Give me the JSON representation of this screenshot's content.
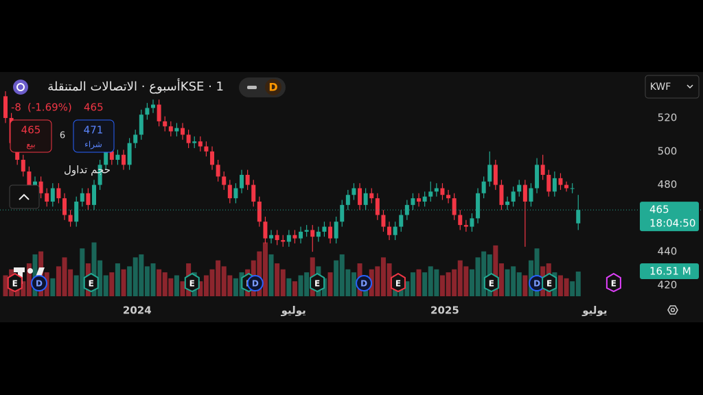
{
  "header": {
    "title": "KSE · 1أسبوع · الاتصالات المتنقلة",
    "toggle_label": "D",
    "currency": "KWF"
  },
  "quote": {
    "change": "-8",
    "change_pct": "(-1.69%)",
    "price": "465",
    "sell": {
      "price": "465",
      "label": "بيع"
    },
    "spread": "6",
    "buy": {
      "price": "471",
      "label": "شراء"
    },
    "countdown": "18:04:50"
  },
  "chart_data": {
    "type": "candlestick",
    "categories": [
      null,
      null,
      null,
      null,
      null,
      null,
      null,
      null,
      null,
      null,
      null,
      null,
      null,
      null,
      null,
      null,
      null,
      null,
      null,
      null,
      null,
      null,
      null,
      null,
      null,
      null,
      null,
      null,
      null,
      null,
      null,
      null,
      null,
      null,
      null,
      null,
      null,
      null,
      null,
      null,
      null,
      null,
      null,
      null,
      null,
      null,
      null,
      null,
      null,
      null,
      null,
      null,
      null,
      null,
      null,
      null,
      null,
      null,
      null,
      null,
      null,
      null,
      null,
      null,
      null,
      null,
      null,
      null,
      null,
      null,
      null,
      null,
      null,
      null,
      null,
      null,
      null,
      null,
      null,
      null,
      null,
      null,
      null,
      null,
      null,
      null,
      null,
      null,
      null,
      null,
      null,
      null,
      null,
      null,
      null,
      null,
      null,
      null
    ],
    "open": [
      533,
      520,
      505,
      495,
      488,
      480,
      482,
      475,
      470,
      478,
      472,
      462,
      458,
      470,
      475,
      468,
      480,
      492,
      500,
      495,
      498,
      492,
      505,
      510,
      522,
      526,
      528,
      518,
      515,
      512,
      514,
      510,
      505,
      506,
      503,
      500,
      492,
      485,
      480,
      472,
      478,
      486,
      480,
      470,
      458,
      448,
      450,
      447,
      446,
      450,
      448,
      452,
      453,
      449,
      452,
      455,
      448,
      458,
      468,
      474,
      478,
      468,
      475,
      472,
      462,
      455,
      450,
      455,
      462,
      468,
      472,
      470,
      473,
      476,
      478,
      474,
      472,
      462,
      456,
      455,
      460,
      475,
      482,
      492,
      480,
      468,
      470,
      476,
      480,
      470,
      478,
      492,
      486,
      476,
      484,
      480,
      478,
      457
    ],
    "high": [
      536,
      523,
      508,
      498,
      491,
      485,
      485,
      478,
      481,
      481,
      475,
      465,
      473,
      478,
      478,
      483,
      495,
      503,
      503,
      501,
      501,
      508,
      513,
      525,
      529,
      531,
      531,
      521,
      518,
      517,
      517,
      513,
      509,
      509,
      506,
      503,
      495,
      488,
      483,
      481,
      489,
      489,
      483,
      473,
      461,
      453,
      453,
      450,
      453,
      453,
      455,
      456,
      456,
      455,
      458,
      458,
      461,
      471,
      477,
      481,
      481,
      478,
      478,
      475,
      465,
      458,
      458,
      465,
      471,
      475,
      475,
      476,
      482,
      481,
      481,
      477,
      475,
      465,
      459,
      463,
      478,
      485,
      500,
      495,
      483,
      473,
      479,
      483,
      483,
      481,
      496,
      498,
      489,
      488,
      487,
      482,
      481,
      474
    ],
    "low": [
      517,
      502,
      492,
      485,
      477,
      477,
      472,
      467,
      467,
      469,
      459,
      455,
      455,
      467,
      465,
      465,
      477,
      489,
      492,
      492,
      489,
      489,
      502,
      507,
      519,
      523,
      515,
      512,
      509,
      509,
      507,
      502,
      502,
      500,
      497,
      489,
      482,
      477,
      469,
      469,
      475,
      477,
      467,
      455,
      445,
      445,
      444,
      443,
      443,
      445,
      445,
      449,
      440,
      446,
      449,
      445,
      445,
      455,
      465,
      471,
      465,
      465,
      469,
      459,
      452,
      447,
      447,
      452,
      459,
      465,
      467,
      467,
      470,
      473,
      471,
      469,
      459,
      453,
      452,
      452,
      457,
      472,
      479,
      477,
      465,
      465,
      467,
      473,
      443,
      467,
      475,
      483,
      473,
      473,
      477,
      476,
      475,
      453
    ],
    "close": [
      520,
      505,
      495,
      488,
      480,
      482,
      475,
      470,
      478,
      472,
      462,
      458,
      470,
      475,
      468,
      480,
      492,
      500,
      495,
      498,
      492,
      505,
      510,
      522,
      526,
      528,
      518,
      515,
      512,
      514,
      510,
      505,
      506,
      503,
      500,
      492,
      485,
      480,
      472,
      478,
      486,
      480,
      470,
      458,
      448,
      450,
      447,
      446,
      450,
      448,
      452,
      453,
      449,
      452,
      455,
      448,
      458,
      468,
      474,
      478,
      468,
      475,
      472,
      462,
      455,
      450,
      455,
      462,
      468,
      472,
      470,
      473,
      476,
      478,
      474,
      472,
      462,
      456,
      455,
      460,
      475,
      482,
      492,
      480,
      468,
      470,
      476,
      480,
      470,
      478,
      492,
      486,
      476,
      484,
      480,
      478,
      478,
      465
    ],
    "up_color": "#22ab94",
    "down_color": "#f23645",
    "ylim": [
      413.4,
      547.5
    ],
    "yticks": [
      420,
      440,
      480,
      500,
      520
    ],
    "xlim": [
      -0.93,
      107.2
    ],
    "xticks": [
      {
        "value": 22.3,
        "label": "2024"
      },
      {
        "value": 48.8,
        "label": "يوليو"
      },
      {
        "value": 74.4,
        "label": "2025"
      },
      {
        "value": 99.8,
        "label": "يوليو"
      }
    ],
    "volume": {
      "name": "حجم تداول",
      "ylim": [
        0,
        150
      ],
      "current_label": "16.51 M",
      "values": [
        14,
        18,
        12,
        10,
        22,
        28,
        30,
        16,
        12,
        20,
        26,
        18,
        14,
        32,
        22,
        36,
        24,
        14,
        16,
        22,
        18,
        20,
        26,
        28,
        20,
        22,
        18,
        16,
        12,
        14,
        10,
        22,
        16,
        10,
        14,
        18,
        24,
        20,
        14,
        12,
        16,
        18,
        24,
        30,
        36,
        28,
        22,
        18,
        12,
        10,
        14,
        16,
        26,
        20,
        12,
        16,
        24,
        28,
        18,
        16,
        22,
        14,
        18,
        20,
        26,
        22,
        14,
        12,
        10,
        16,
        18,
        16,
        20,
        18,
        14,
        16,
        18,
        24,
        20,
        18,
        26,
        30,
        28,
        34,
        22,
        18,
        20,
        16,
        14,
        24,
        32,
        20,
        22,
        16,
        14,
        12,
        10,
        16.51
      ]
    },
    "events": [
      {
        "x": 1.6,
        "label": "E",
        "color": "#f23645"
      },
      {
        "x": 5.7,
        "label": "D",
        "color": "#2962ff"
      },
      {
        "x": 14.5,
        "label": "E",
        "color": "#22ab94"
      },
      {
        "x": 31.6,
        "label": "E",
        "color": "#22ab94"
      },
      {
        "x": 41.2,
        "label": "E",
        "color": "#22ab94"
      },
      {
        "x": 42.3,
        "label": "D",
        "color": "#2962ff"
      },
      {
        "x": 52.8,
        "label": "E",
        "color": "#22ab94"
      },
      {
        "x": 60.7,
        "label": "D",
        "color": "#2962ff"
      },
      {
        "x": 66.5,
        "label": "E",
        "color": "#f23645"
      },
      {
        "x": 82.3,
        "label": "E",
        "color": "#22ab94"
      },
      {
        "x": 90,
        "label": "D",
        "color": "#2962ff"
      },
      {
        "x": 92.1,
        "label": "E",
        "color": "#22ab94"
      },
      {
        "x": 103,
        "label": "E",
        "color": "#e040fb"
      }
    ]
  }
}
